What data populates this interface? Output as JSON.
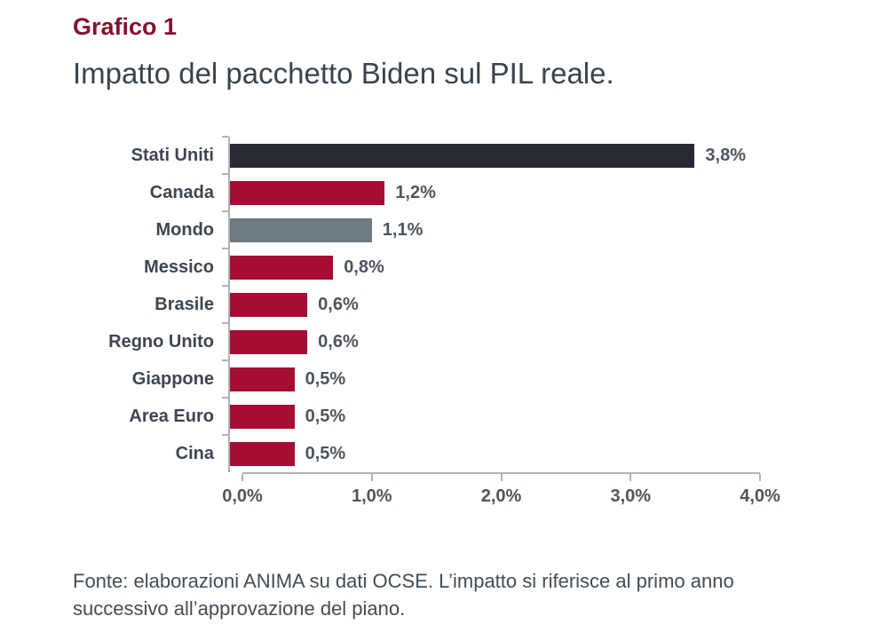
{
  "page": {
    "kicker": "Grafico 1",
    "title": "Impatto del pacchetto Biden sul PIL reale.",
    "source_note": "Fonte: elaborazioni ANIMA su dati OCSE. L’impatto si riferisce al primo anno successivo all’approvazione del piano."
  },
  "colors": {
    "kicker_red": "#84122c",
    "bar_crimson": "#a50d33",
    "bar_dark": "#262b33",
    "bar_gray": "#6d7a80",
    "axis_gray": "#b3b3b3",
    "label_text": "#3d4650",
    "value_text": "#4d555e"
  },
  "chart_data": {
    "type": "bar",
    "orientation": "horizontal",
    "title": "Impatto del pacchetto Biden sul PIL reale.",
    "xlabel": "",
    "ylabel": "",
    "grid": false,
    "legend": false,
    "xlim": [
      0,
      4
    ],
    "categories": [
      "Stati Uniti",
      "Canada",
      "Mondo",
      "Messico",
      "Brasile",
      "Regno Unito",
      "Giappone",
      "Area Euro",
      "Cina"
    ],
    "values": [
      3.8,
      1.2,
      1.1,
      0.8,
      0.6,
      0.6,
      0.5,
      0.5,
      0.5
    ],
    "value_labels": [
      "3,8%",
      "1,2%",
      "1,1%",
      "0,8%",
      "0,6%",
      "0,6%",
      "0,5%",
      "0,5%",
      "0,5%"
    ],
    "bar_colors": [
      "#262b33",
      "#a50d33",
      "#6d7a80",
      "#a50d33",
      "#a50d33",
      "#a50d33",
      "#a50d33",
      "#a50d33",
      "#a50d33"
    ],
    "x_ticks": [
      "0,0%",
      "1,0%",
      "2,0%",
      "3,0%",
      "4,0%"
    ]
  }
}
